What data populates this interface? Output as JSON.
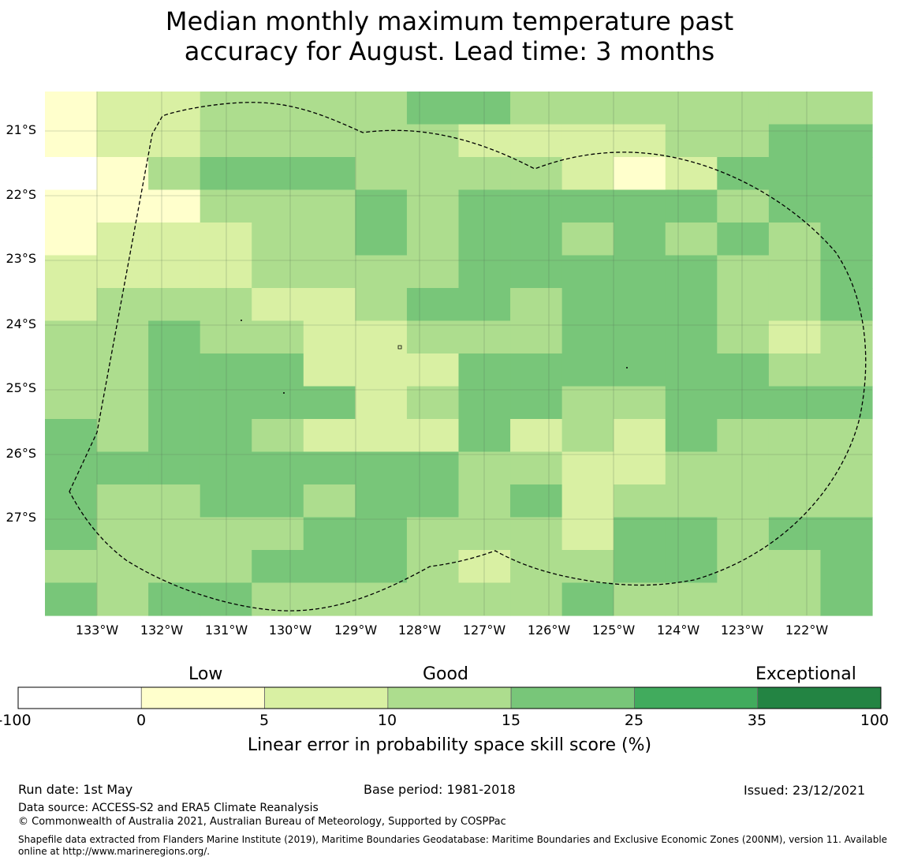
{
  "title": {
    "line1": "Median monthly maximum temperature past",
    "line2": "accuracy for August. Lead time: 3 months"
  },
  "map": {
    "lat_labels": [
      "21°S",
      "22°S",
      "23°S",
      "24°S",
      "25°S",
      "26°S",
      "27°S"
    ],
    "lon_labels": [
      "133°W",
      "132°W",
      "131°W",
      "130°W",
      "129°W",
      "128°W",
      "127°W",
      "126°W",
      "125°W",
      "124°W",
      "123°W",
      "122°W"
    ],
    "skill_grid_classes": [
      [
        1,
        2,
        2,
        3,
        3,
        3,
        3,
        4,
        4,
        3,
        3,
        3,
        3,
        3,
        3,
        3
      ],
      [
        1,
        2,
        2,
        3,
        3,
        3,
        3,
        3,
        2,
        2,
        2,
        2,
        3,
        3,
        4,
        4
      ],
      [
        0,
        1,
        3,
        4,
        4,
        4,
        3,
        3,
        3,
        3,
        2,
        1,
        2,
        4,
        4,
        4
      ],
      [
        1,
        1,
        1,
        3,
        3,
        3,
        4,
        3,
        4,
        4,
        4,
        4,
        4,
        3,
        4,
        4
      ],
      [
        1,
        2,
        2,
        2,
        3,
        3,
        4,
        3,
        4,
        4,
        3,
        4,
        3,
        4,
        3,
        4
      ],
      [
        2,
        2,
        2,
        2,
        3,
        3,
        3,
        3,
        4,
        4,
        4,
        4,
        4,
        3,
        3,
        4
      ],
      [
        2,
        3,
        3,
        3,
        2,
        2,
        3,
        4,
        4,
        3,
        4,
        4,
        4,
        3,
        3,
        4
      ],
      [
        3,
        3,
        4,
        3,
        3,
        2,
        2,
        3,
        3,
        3,
        4,
        4,
        4,
        3,
        2,
        3
      ],
      [
        3,
        3,
        4,
        4,
        4,
        2,
        2,
        2,
        4,
        4,
        4,
        4,
        4,
        4,
        3,
        3
      ],
      [
        3,
        3,
        4,
        4,
        4,
        4,
        2,
        3,
        4,
        4,
        3,
        3,
        4,
        4,
        4,
        4
      ],
      [
        4,
        3,
        4,
        4,
        3,
        2,
        2,
        2,
        4,
        2,
        3,
        2,
        4,
        3,
        3,
        3
      ],
      [
        4,
        4,
        4,
        4,
        4,
        4,
        4,
        4,
        3,
        3,
        2,
        2,
        3,
        3,
        3,
        3
      ],
      [
        4,
        3,
        3,
        4,
        4,
        3,
        4,
        4,
        3,
        4,
        2,
        3,
        3,
        3,
        3,
        3
      ],
      [
        4,
        3,
        3,
        3,
        3,
        4,
        4,
        3,
        3,
        3,
        2,
        4,
        4,
        3,
        4,
        4
      ],
      [
        3,
        3,
        3,
        3,
        4,
        4,
        4,
        3,
        2,
        3,
        3,
        4,
        4,
        3,
        3,
        4
      ],
      [
        4,
        3,
        4,
        4,
        3,
        3,
        3,
        3,
        3,
        3,
        4,
        3,
        3,
        3,
        3,
        4
      ]
    ],
    "eez_boundary": "dashed-line",
    "colors": {
      "class_0": "#ffffff",
      "class_1": "#ffffcc",
      "class_2": "#d9f0a3",
      "class_3": "#addd8e",
      "class_4": "#78c679",
      "class_5": "#41ab5d",
      "class_6": "#238443"
    }
  },
  "colorbar": {
    "categories": [
      "Low",
      "Good",
      "Exceptional"
    ],
    "ticks": [
      "-100",
      "0",
      "5",
      "10",
      "15",
      "25",
      "35",
      "100"
    ],
    "colors": [
      "#ffffff",
      "#ffffcc",
      "#d9f0a3",
      "#addd8e",
      "#78c679",
      "#41ab5d",
      "#238443"
    ],
    "label": "Linear error in probability space skill score (%)"
  },
  "footer": {
    "run_date": "Run date: 1st May",
    "base_period": "Base period: 1981-2018",
    "issued": "Issued: 23/12/2021",
    "data_source": "Data source: ACCESS-S2 and ERA5 Climate Reanalysis",
    "copyright": "© Commonwealth of Australia 2021, Australian Bureau of Meteorology, Supported by COSPPac",
    "shapefile": "Shapefile data extracted from Flanders Marine Institute (2019), Maritime Boundaries Geodatabase: Maritime Boundaries and Exclusive Economic Zones (200NM), version 11. Available online at http://www.marineregions.org/."
  }
}
